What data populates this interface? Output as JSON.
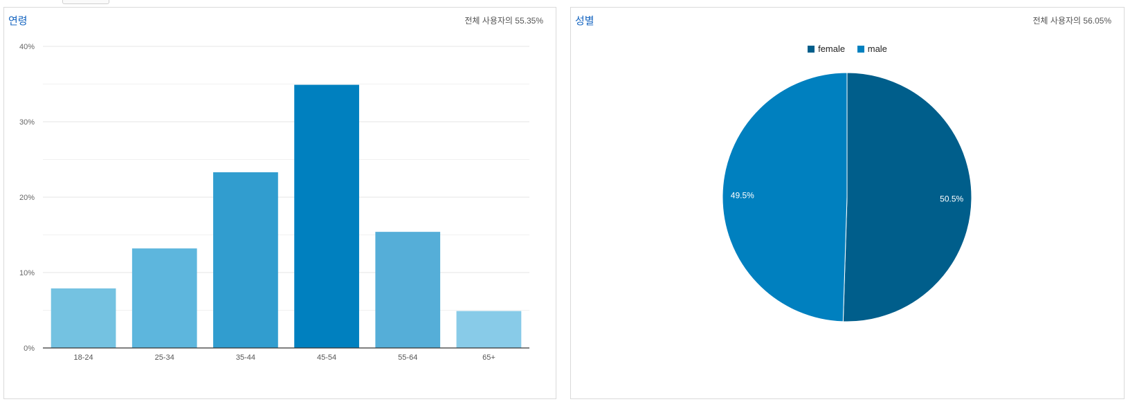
{
  "colors": {
    "panel_border": "#d9d9d9",
    "title": "#1565c0",
    "bar_fill": [
      "#74c2e1",
      "#5db6dd",
      "#319dcf",
      "#0080bf",
      "#55aed8",
      "#88cbe8"
    ],
    "female": "#005e8b",
    "male": "#0080bf"
  },
  "age_panel": {
    "title": "연령",
    "note": "전체 사용자의 55.35%"
  },
  "gender_panel": {
    "title": "성별",
    "note": "전체 사용자의 56.05%"
  },
  "chart_data": [
    {
      "type": "bar",
      "title": "연령",
      "categories": [
        "18-24",
        "25-34",
        "35-44",
        "45-54",
        "55-64",
        "65+"
      ],
      "values": [
        7.9,
        13.2,
        23.3,
        34.9,
        15.4,
        4.9
      ],
      "ylim": [
        0,
        40
      ],
      "yticks": [
        0,
        10,
        20,
        30,
        40
      ],
      "ytick_labels": [
        "0%",
        "10%",
        "20%",
        "30%",
        "40%"
      ],
      "grid": true
    },
    {
      "type": "pie",
      "title": "성별",
      "categories": [
        "female",
        "male"
      ],
      "values": [
        50.5,
        49.5
      ],
      "labels": [
        "50.5%",
        "49.5%"
      ],
      "legend": "top-center"
    }
  ]
}
